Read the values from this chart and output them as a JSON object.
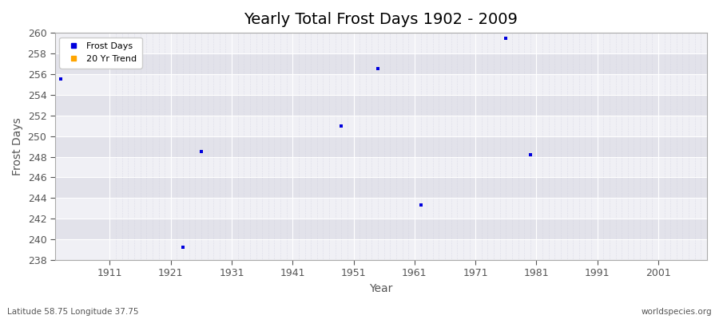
{
  "title": "Yearly Total Frost Days 1902 - 2009",
  "xlabel": "Year",
  "ylabel": "Frost Days",
  "xlim": [
    1902,
    2009
  ],
  "ylim": [
    238,
    260
  ],
  "yticks": [
    238,
    240,
    242,
    244,
    246,
    248,
    250,
    252,
    254,
    256,
    258,
    260
  ],
  "xticks": [
    1911,
    1921,
    1931,
    1941,
    1951,
    1961,
    1971,
    1981,
    1991,
    2001
  ],
  "data_points": [
    [
      1903,
      255.5
    ],
    [
      1923,
      239.2
    ],
    [
      1926,
      248.5
    ],
    [
      1949,
      251.0
    ],
    [
      1955,
      256.5
    ],
    [
      1962,
      243.3
    ],
    [
      1976,
      259.5
    ],
    [
      1980,
      248.2
    ]
  ],
  "point_color": "#0000dd",
  "point_marker": "s",
  "point_size": 6,
  "bg_light": "#f0f0f5",
  "bg_dark": "#e2e2ea",
  "grid_major_color": "#ffffff",
  "grid_minor_color": "#ccccdd",
  "legend_labels": [
    "Frost Days",
    "20 Yr Trend"
  ],
  "legend_colors": [
    "#0000dd",
    "#ffa500"
  ],
  "title_fontsize": 14,
  "label_fontsize": 10,
  "tick_fontsize": 9,
  "tick_color": "#555555",
  "bottom_left_text": "Latitude 58.75 Longitude 37.75",
  "bottom_right_text": "worldspecies.org"
}
